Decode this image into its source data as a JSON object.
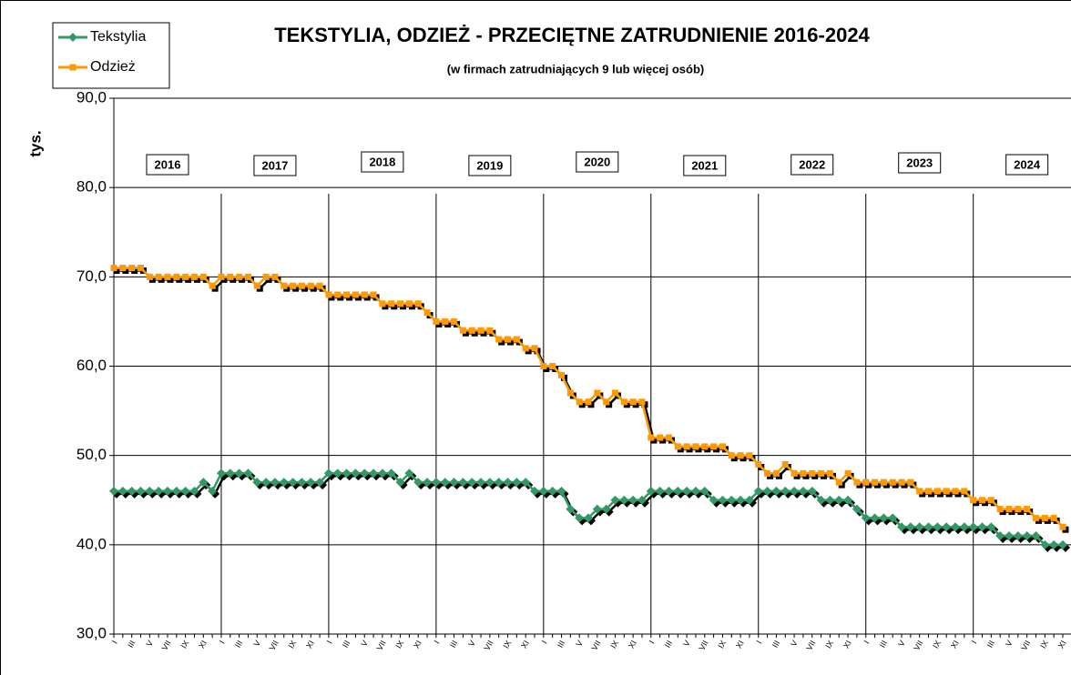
{
  "chart_data": {
    "type": "line",
    "title": "TEKSTYLIA, ODZIEŻ - PRZECIĘTNE ZATRUDNIENIE  2016-2024",
    "subtitle": "(w firmach zatrudniających 9 lub więcej osób)",
    "y_label": "tys.",
    "year_labels": [
      "2016",
      "2017",
      "2018",
      "2019",
      "2020",
      "2021",
      "2022",
      "2023",
      "2024"
    ],
    "categories": [
      "I",
      null,
      "III",
      null,
      "V",
      null,
      "VII",
      null,
      "IX",
      null,
      "XI",
      null,
      "I",
      null,
      "III",
      null,
      "V",
      null,
      "VII",
      null,
      "IX",
      null,
      "XI",
      null,
      "I",
      null,
      "III",
      null,
      "V",
      null,
      "VII",
      null,
      "IX",
      null,
      "XI",
      null,
      "I",
      null,
      "III",
      null,
      "V",
      null,
      "VII",
      null,
      "IX",
      null,
      "XI",
      null,
      "I",
      null,
      "III",
      null,
      "V",
      null,
      "VII",
      null,
      "IX",
      null,
      "XI",
      null,
      "I",
      null,
      "III",
      null,
      "V",
      null,
      "VII",
      null,
      "IX",
      null,
      "XI",
      null,
      "I",
      null,
      "III",
      null,
      "V",
      null,
      "VII",
      null,
      "IX",
      null,
      "XI",
      null,
      "I",
      null,
      "III",
      null,
      "V",
      null,
      "VII",
      null,
      "IX",
      null,
      "XI",
      null,
      "I",
      null,
      "III",
      null,
      "V",
      null,
      "VII",
      null,
      "IX",
      null,
      "XI"
    ],
    "series": [
      {
        "name": "Tekstylia",
        "color": "#339966",
        "marker": "diamond",
        "values": [
          46,
          46,
          46,
          46,
          46,
          46,
          46,
          46,
          46,
          46,
          47,
          46,
          48,
          48,
          48,
          48,
          47,
          47,
          47,
          47,
          47,
          47,
          47,
          47,
          48,
          48,
          48,
          48,
          48,
          48,
          48,
          48,
          47,
          48,
          47,
          47,
          47,
          47,
          47,
          47,
          47,
          47,
          47,
          47,
          47,
          47,
          47,
          46,
          46,
          46,
          46,
          44,
          43,
          43,
          44,
          44,
          45,
          45,
          45,
          45,
          46,
          46,
          46,
          46,
          46,
          46,
          46,
          45,
          45,
          45,
          45,
          45,
          46,
          46,
          46,
          46,
          46,
          46,
          46,
          45,
          45,
          45,
          45,
          44,
          43,
          43,
          43,
          43,
          42,
          42,
          42,
          42,
          42,
          42,
          42,
          42,
          42,
          42,
          42,
          41,
          41,
          41,
          41,
          41,
          40,
          40,
          40
        ]
      },
      {
        "name": "Odzież",
        "color": "#ff9900",
        "marker": "square",
        "values": [
          71,
          71,
          71,
          71,
          70,
          70,
          70,
          70,
          70,
          70,
          70,
          69,
          70,
          70,
          70,
          70,
          69,
          70,
          70,
          69,
          69,
          69,
          69,
          69,
          68,
          68,
          68,
          68,
          68,
          68,
          67,
          67,
          67,
          67,
          67,
          66,
          65,
          65,
          65,
          64,
          64,
          64,
          64,
          63,
          63,
          63,
          62,
          62,
          60,
          60,
          59,
          57,
          56,
          56,
          57,
          56,
          57,
          56,
          56,
          56,
          52,
          52,
          52,
          51,
          51,
          51,
          51,
          51,
          51,
          50,
          50,
          50,
          49,
          48,
          48,
          49,
          48,
          48,
          48,
          48,
          48,
          47,
          48,
          47,
          47,
          47,
          47,
          47,
          47,
          47,
          46,
          46,
          46,
          46,
          46,
          46,
          45,
          45,
          45,
          44,
          44,
          44,
          44,
          43,
          43,
          43,
          42
        ]
      }
    ],
    "ylim": [
      30,
      90
    ],
    "yticks": [
      {
        "value": 30,
        "label": "30,0"
      },
      {
        "value": 40,
        "label": "40,0"
      },
      {
        "value": 50,
        "label": "50,0"
      },
      {
        "value": 60,
        "label": "60,0"
      },
      {
        "value": 70,
        "label": "70,0"
      },
      {
        "value": 80,
        "label": "80,0"
      },
      {
        "value": 90,
        "label": "90,0"
      }
    ],
    "grid": true,
    "legend": "top-left"
  }
}
